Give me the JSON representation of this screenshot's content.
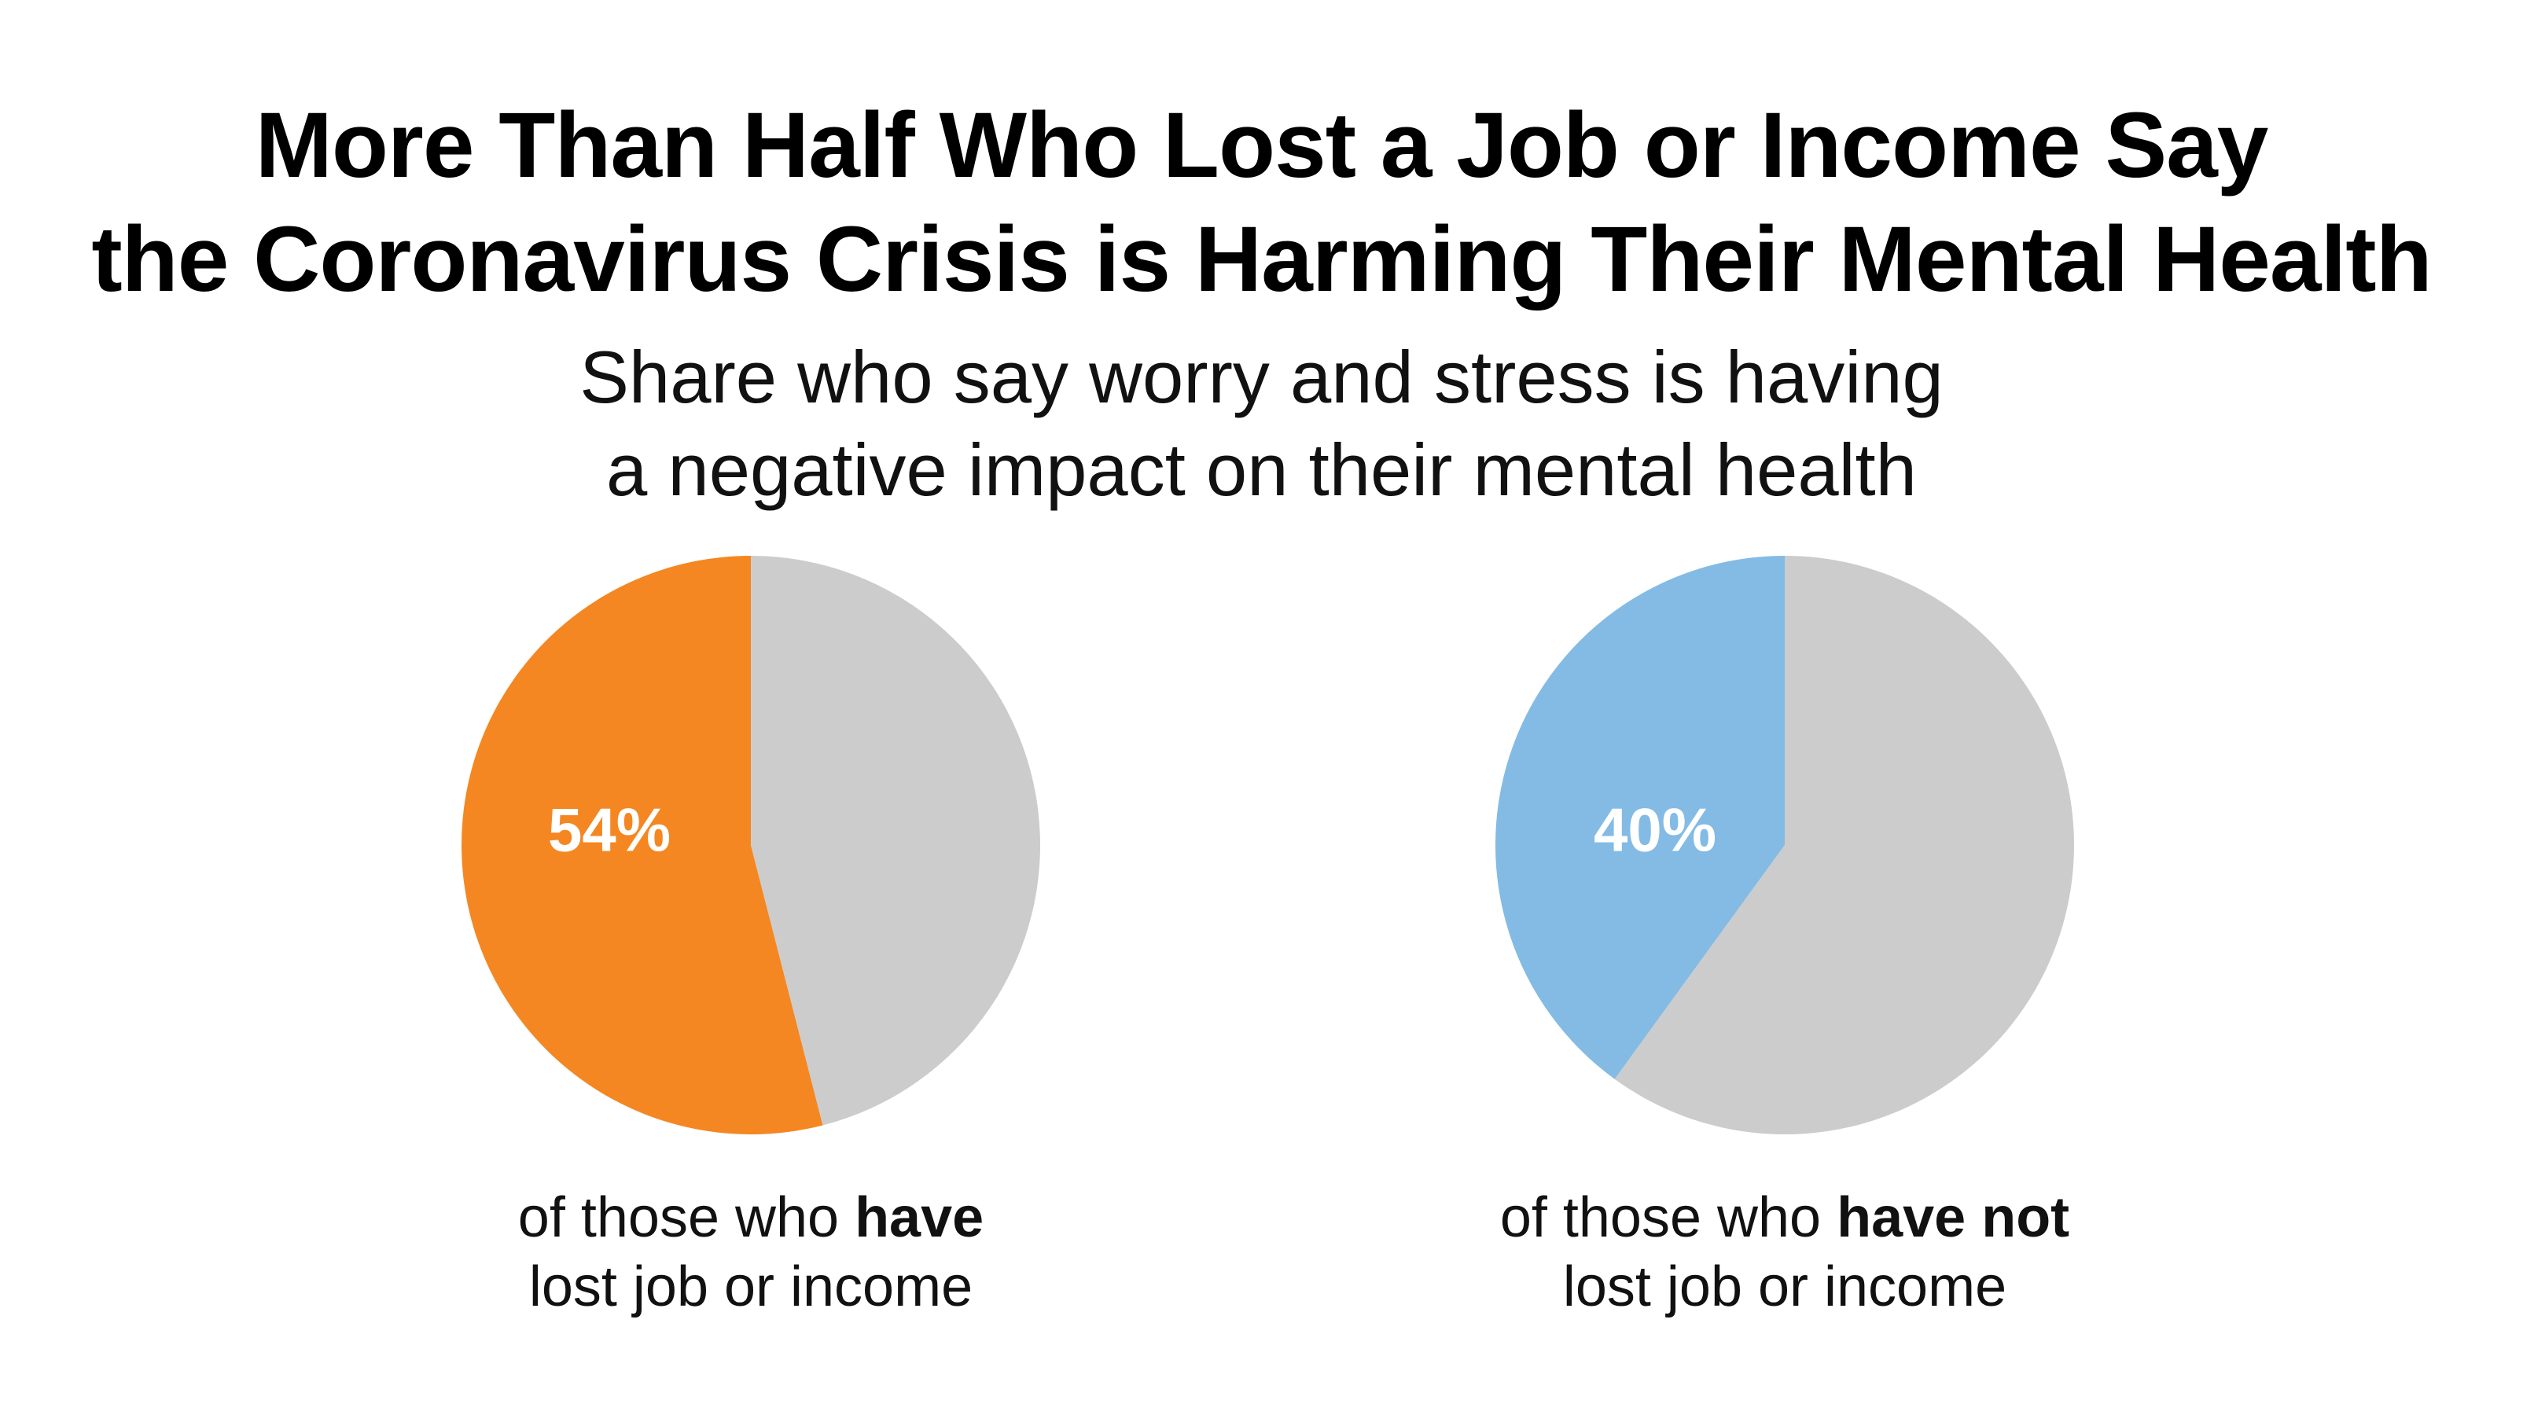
{
  "title": {
    "line1": "More Than Half Who Lost a Job or Income Say",
    "line2": "the Coronavirus Crisis is Harming Their Mental Health"
  },
  "subtitle": {
    "line1": "Share who say worry and stress is having",
    "line2": "a negative impact on their mental health"
  },
  "chart_data": [
    {
      "type": "pie",
      "slices": [
        {
          "label": "54%",
          "value": 54,
          "color": "#F48722"
        },
        {
          "label": "",
          "value": 46,
          "color": "#CCCCCC"
        }
      ],
      "caption": {
        "line1_prefix": "of those who ",
        "line1_bold": "have",
        "line2": "lost job or income"
      }
    },
    {
      "type": "pie",
      "slices": [
        {
          "label": "40%",
          "value": 40,
          "color": "#83BBE5"
        },
        {
          "label": "",
          "value": 60,
          "color": "#CCCCCC"
        }
      ],
      "caption": {
        "line1_prefix": "of those who ",
        "line1_bold": "have not",
        "line2": "lost job or income"
      }
    }
  ]
}
